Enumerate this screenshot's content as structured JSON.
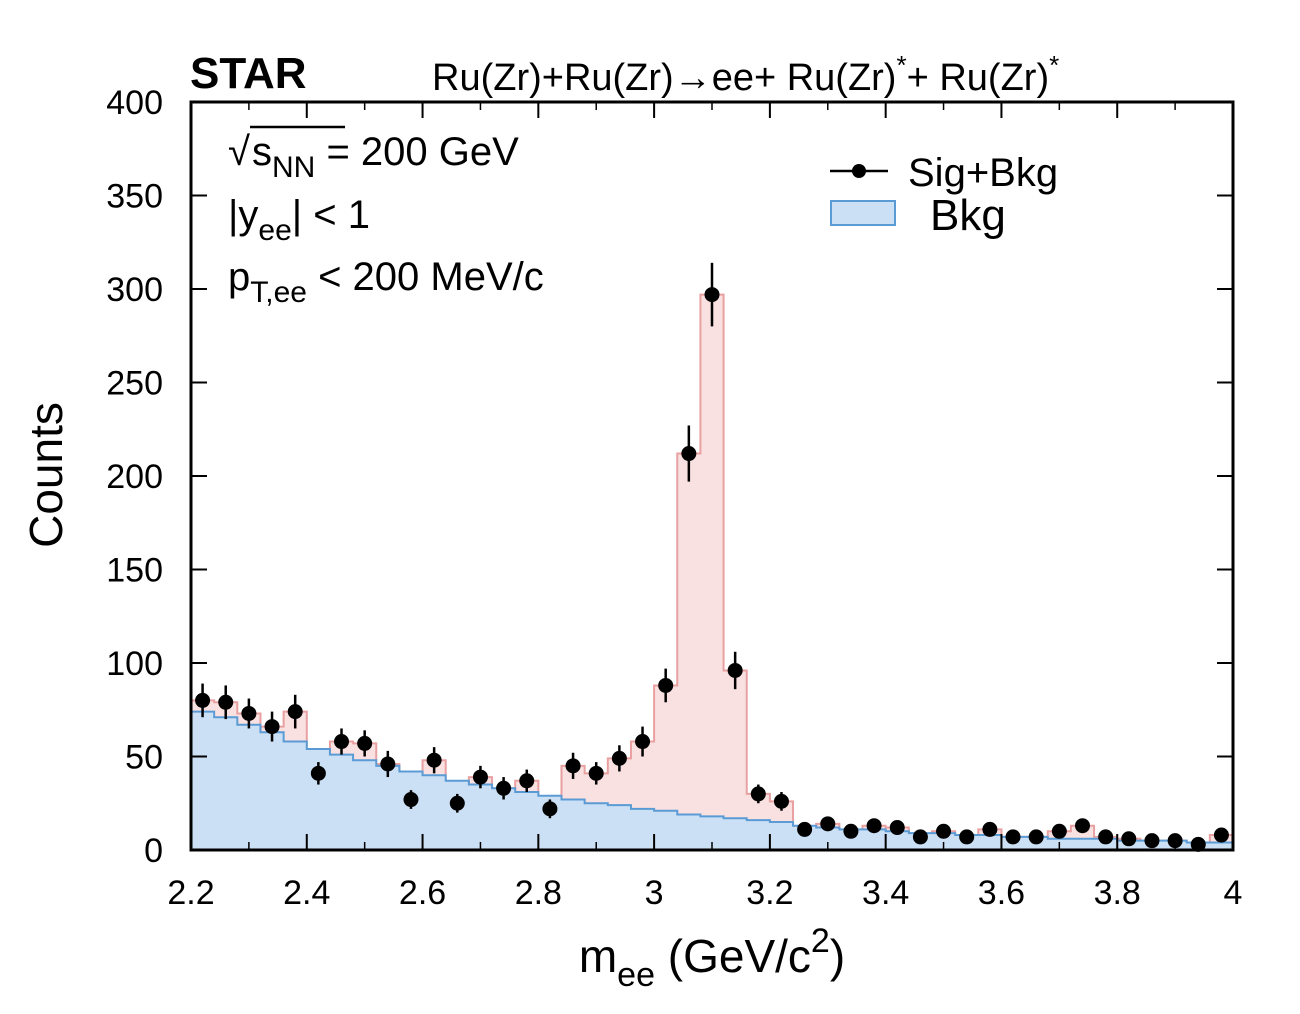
{
  "chart_data": {
    "type": "bar",
    "experiment_label": "STAR",
    "title": "Ru(Zr)+Ru(Zr)→ee+ Ru(Zr)*+ Ru(Zr)*",
    "annotations": {
      "energy": "√s_NN = 200 GeV",
      "rapidity": "|y_ee| < 1",
      "pt_cut": "p_T,ee < 200 MeV/c"
    },
    "xlabel": "m_ee (GeV/c^2)",
    "ylabel": "Counts",
    "xlim": [
      2.2,
      4.0
    ],
    "ylim": [
      0,
      400
    ],
    "xticks": [
      "2.2",
      "2.4",
      "2.6",
      "2.8",
      "3",
      "3.2",
      "3.4",
      "3.6",
      "3.8",
      "4"
    ],
    "yticks": [
      "0",
      "50",
      "100",
      "150",
      "200",
      "250",
      "300",
      "350",
      "400"
    ],
    "bin_width": 0.04,
    "bin_low_edges": [
      2.2,
      2.24,
      2.28,
      2.32,
      2.36,
      2.4,
      2.44,
      2.48,
      2.52,
      2.56,
      2.6,
      2.64,
      2.68,
      2.72,
      2.76,
      2.8,
      2.84,
      2.88,
      2.92,
      2.96,
      3.0,
      3.04,
      3.08,
      3.12,
      3.16,
      3.2,
      3.24,
      3.28,
      3.32,
      3.36,
      3.4,
      3.44,
      3.48,
      3.52,
      3.56,
      3.6,
      3.64,
      3.68,
      3.72,
      3.76,
      3.8,
      3.84,
      3.88,
      3.92,
      3.96
    ],
    "legend": {
      "position": "top-right",
      "entries": [
        {
          "label": "Sig+Bkg",
          "marker": "point-with-line",
          "color": "#000000"
        },
        {
          "label": "Bkg",
          "marker": "filled-box",
          "color": "#cce0f5"
        }
      ]
    },
    "series": [
      {
        "name": "Sig+Bkg",
        "style": "points-with-errors",
        "x": [
          2.22,
          2.26,
          2.3,
          2.34,
          2.38,
          2.42,
          2.46,
          2.5,
          2.54,
          2.58,
          2.62,
          2.66,
          2.7,
          2.74,
          2.78,
          2.82,
          2.86,
          2.9,
          2.94,
          2.98,
          3.02,
          3.06,
          3.1,
          3.14,
          3.18,
          3.22,
          3.26,
          3.3,
          3.34,
          3.38,
          3.42,
          3.46,
          3.5,
          3.54,
          3.58,
          3.62,
          3.66,
          3.7,
          3.74,
          3.78,
          3.82,
          3.86,
          3.9,
          3.94,
          3.98
        ],
        "values": [
          80,
          79,
          73,
          66,
          74,
          41,
          58,
          57,
          46,
          27,
          48,
          25,
          39,
          33,
          37,
          22,
          45,
          41,
          49,
          58,
          88,
          212,
          297,
          96,
          30,
          26,
          11,
          14,
          10,
          13,
          12,
          7,
          10,
          7,
          11,
          7,
          7,
          10,
          13,
          7,
          6,
          5,
          5,
          3,
          8
        ],
        "errors": [
          9,
          9,
          8,
          8,
          9,
          6,
          7,
          7,
          7,
          5,
          7,
          5,
          6,
          6,
          6,
          5,
          7,
          6,
          7,
          8,
          9,
          15,
          17,
          10,
          5,
          5,
          3,
          3,
          3,
          3,
          3,
          2,
          3,
          2,
          3,
          2,
          2,
          3,
          3,
          2,
          2,
          2,
          2,
          2,
          2
        ],
        "fill_color": "#f9e1e1",
        "edge_color": "#e8a0a0"
      },
      {
        "name": "Bkg",
        "style": "filled-step",
        "values": [
          74,
          71,
          67,
          63,
          58,
          54,
          51,
          48,
          45,
          42,
          40,
          37,
          35,
          33,
          31,
          29,
          27,
          25,
          24,
          22,
          21,
          19,
          18,
          17,
          16,
          15,
          13,
          12,
          11,
          11,
          10,
          9,
          9,
          8,
          8,
          7,
          7,
          6,
          6,
          6,
          5,
          5,
          5,
          4,
          4
        ],
        "fill_color": "#cce0f5",
        "edge_color": "#5b9bd5"
      }
    ]
  }
}
